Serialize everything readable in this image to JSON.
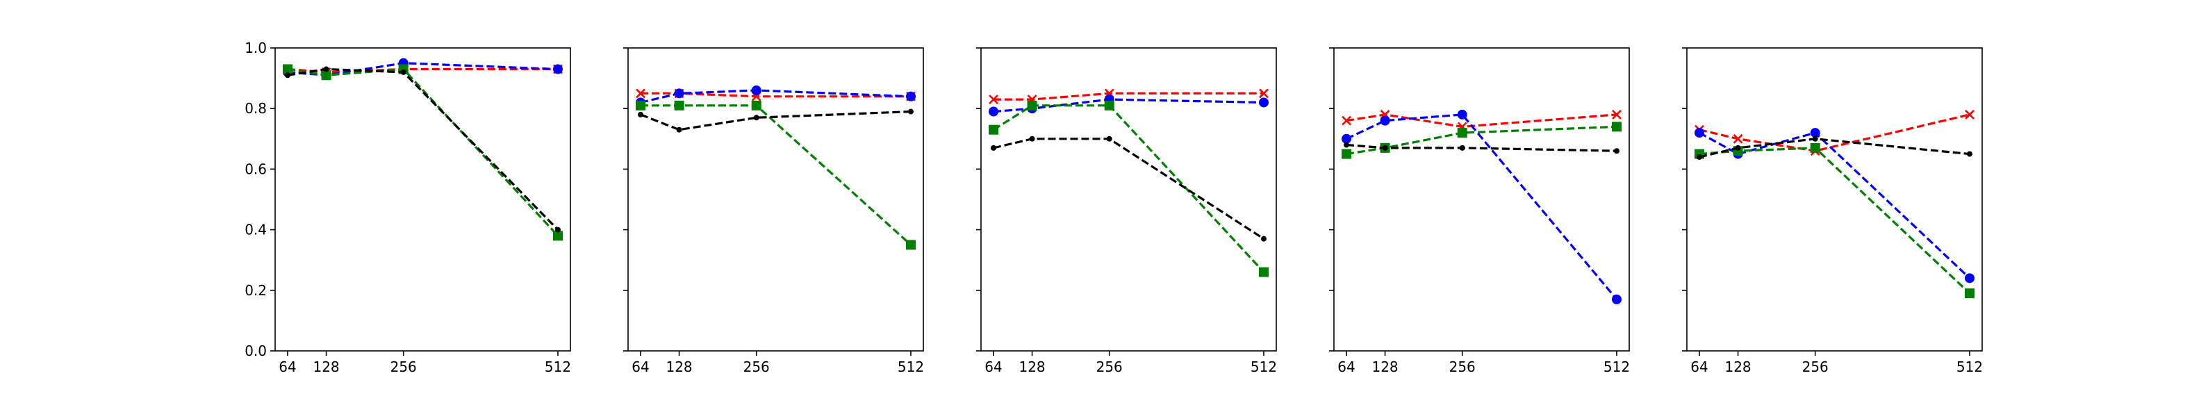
{
  "chart_data": [
    {
      "type": "line",
      "x": [
        64,
        128,
        256,
        512
      ],
      "x_ticks": [
        "64",
        "128",
        "256",
        "512"
      ],
      "ylim": [
        0,
        1.0
      ],
      "y_ticks": [
        "0.0",
        "0.2",
        "0.4",
        "0.6",
        "0.8",
        "1.0"
      ],
      "grid": false,
      "series": [
        {
          "color": "#ff0000",
          "marker": "x",
          "linestyle": "dashed",
          "values": [
            0.93,
            0.92,
            0.93,
            0.93
          ]
        },
        {
          "color": "#0000ff",
          "marker": "circle",
          "linestyle": "dashed",
          "values": [
            0.92,
            0.91,
            0.95,
            0.93
          ]
        },
        {
          "color": "#008000",
          "marker": "square",
          "linestyle": "dashed",
          "values": [
            0.93,
            0.91,
            0.93,
            0.38
          ]
        },
        {
          "color": "#000000",
          "marker": "dot",
          "linestyle": "dashed",
          "values": [
            0.91,
            0.93,
            0.92,
            0.4
          ]
        }
      ]
    },
    {
      "type": "line",
      "x": [
        64,
        128,
        256,
        512
      ],
      "x_ticks": [
        "64",
        "128",
        "256",
        "512"
      ],
      "ylim": [
        0,
        1.0
      ],
      "grid": false,
      "series": [
        {
          "color": "#ff0000",
          "marker": "x",
          "linestyle": "dashed",
          "values": [
            0.85,
            0.85,
            0.84,
            0.84
          ]
        },
        {
          "color": "#0000ff",
          "marker": "circle",
          "linestyle": "dashed",
          "values": [
            0.82,
            0.85,
            0.86,
            0.84
          ]
        },
        {
          "color": "#008000",
          "marker": "square",
          "linestyle": "dashed",
          "values": [
            0.81,
            0.81,
            0.81,
            0.35
          ]
        },
        {
          "color": "#000000",
          "marker": "dot",
          "linestyle": "dashed",
          "values": [
            0.78,
            0.73,
            0.77,
            0.79
          ]
        }
      ]
    },
    {
      "type": "line",
      "x": [
        64,
        128,
        256,
        512
      ],
      "x_ticks": [
        "64",
        "128",
        "256",
        "512"
      ],
      "ylim": [
        0,
        1.0
      ],
      "grid": false,
      "series": [
        {
          "color": "#ff0000",
          "marker": "x",
          "linestyle": "dashed",
          "values": [
            0.83,
            0.83,
            0.85,
            0.85
          ]
        },
        {
          "color": "#0000ff",
          "marker": "circle",
          "linestyle": "dashed",
          "values": [
            0.79,
            0.8,
            0.83,
            0.82
          ]
        },
        {
          "color": "#008000",
          "marker": "square",
          "linestyle": "dashed",
          "values": [
            0.73,
            0.81,
            0.81,
            0.26
          ]
        },
        {
          "color": "#000000",
          "marker": "dot",
          "linestyle": "dashed",
          "values": [
            0.67,
            0.7,
            0.7,
            0.37
          ]
        }
      ]
    },
    {
      "type": "line",
      "x": [
        64,
        128,
        256,
        512
      ],
      "x_ticks": [
        "64",
        "128",
        "256",
        "512"
      ],
      "ylim": [
        0,
        1.0
      ],
      "grid": false,
      "series": [
        {
          "color": "#ff0000",
          "marker": "x",
          "linestyle": "dashed",
          "values": [
            0.76,
            0.78,
            0.74,
            0.78
          ]
        },
        {
          "color": "#0000ff",
          "marker": "circle",
          "linestyle": "dashed",
          "values": [
            0.7,
            0.76,
            0.78,
            0.17
          ]
        },
        {
          "color": "#008000",
          "marker": "square",
          "linestyle": "dashed",
          "values": [
            0.65,
            0.67,
            0.72,
            0.74
          ]
        },
        {
          "color": "#000000",
          "marker": "dot",
          "linestyle": "dashed",
          "values": [
            0.68,
            0.67,
            0.67,
            0.66
          ]
        }
      ]
    },
    {
      "type": "line",
      "x": [
        64,
        128,
        256,
        512
      ],
      "x_ticks": [
        "64",
        "128",
        "256",
        "512"
      ],
      "ylim": [
        0,
        1.0
      ],
      "grid": false,
      "series": [
        {
          "color": "#ff0000",
          "marker": "x",
          "linestyle": "dashed",
          "values": [
            0.73,
            0.7,
            0.66,
            0.78
          ]
        },
        {
          "color": "#0000ff",
          "marker": "circle",
          "linestyle": "dashed",
          "values": [
            0.72,
            0.65,
            0.72,
            0.24
          ]
        },
        {
          "color": "#008000",
          "marker": "square",
          "linestyle": "dashed",
          "values": [
            0.65,
            0.66,
            0.67,
            0.19
          ]
        },
        {
          "color": "#000000",
          "marker": "dot",
          "linestyle": "dashed",
          "values": [
            0.64,
            0.67,
            0.7,
            0.65
          ]
        }
      ]
    }
  ]
}
